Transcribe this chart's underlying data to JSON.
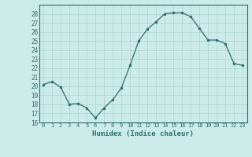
{
  "x": [
    0,
    1,
    2,
    3,
    4,
    5,
    6,
    7,
    8,
    9,
    10,
    11,
    12,
    13,
    14,
    15,
    16,
    17,
    18,
    19,
    20,
    21,
    22,
    23
  ],
  "y": [
    20.2,
    20.5,
    19.9,
    18.0,
    18.1,
    17.6,
    16.5,
    17.6,
    18.5,
    19.8,
    22.3,
    25.0,
    26.3,
    27.1,
    28.0,
    28.1,
    28.1,
    27.7,
    26.4,
    25.1,
    25.1,
    24.7,
    22.5,
    22.3
  ],
  "xlabel": "Humidex (Indice chaleur)",
  "ylim": [
    16,
    29
  ],
  "xlim": [
    -0.5,
    23.5
  ],
  "bg_color": "#ccecea",
  "line_color": "#2d6b6b",
  "grid_color": "#aed4d0",
  "tick_color": "#2d6b6b",
  "spine_color": "#2d6b6b",
  "yticks": [
    16,
    17,
    18,
    19,
    20,
    21,
    22,
    23,
    24,
    25,
    26,
    27,
    28
  ],
  "xticks": [
    0,
    1,
    2,
    3,
    4,
    5,
    6,
    7,
    8,
    9,
    10,
    11,
    12,
    13,
    14,
    15,
    16,
    17,
    18,
    19,
    20,
    21,
    22,
    23
  ],
  "xtick_labels": [
    "0",
    "1",
    "2",
    "3",
    "4",
    "5",
    "6",
    "7",
    "8",
    "9",
    "10",
    "11",
    "12",
    "13",
    "14",
    "15",
    "16",
    "17",
    "18",
    "19",
    "20",
    "21",
    "22",
    "23"
  ]
}
